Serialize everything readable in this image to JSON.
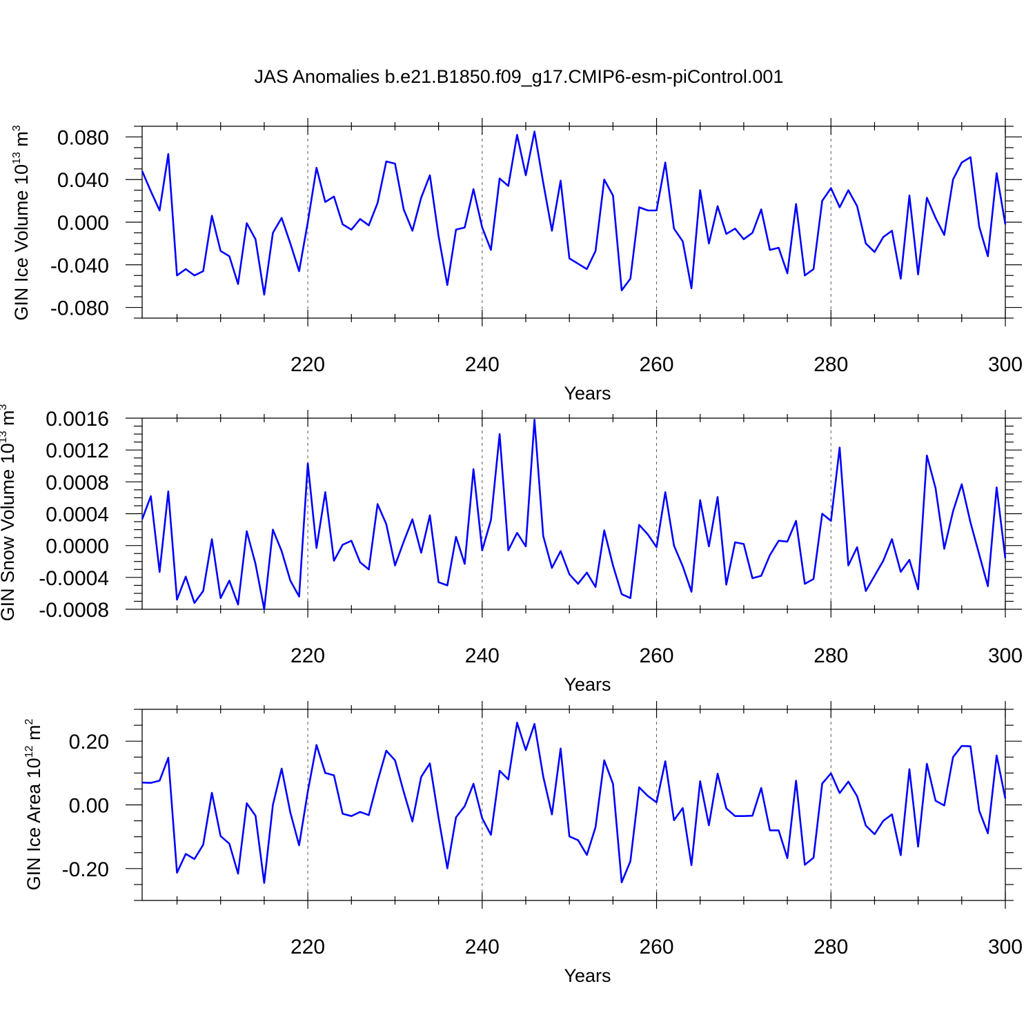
{
  "chart_data": [
    {
      "type": "line",
      "title": "JAS Anomalies b.e21.B1850.f09_g17.CMIP6-esm-piControl.001",
      "xlabel": "Years",
      "ylabel_main": "GIN Ice Volume 10",
      "ylabel_exp": "13",
      "ylabel_unit": "m",
      "ylabel_unit_exp": "3",
      "xlim": [
        201,
        300
      ],
      "ylim": [
        -0.09,
        0.09
      ],
      "xticks": [
        220,
        240,
        260,
        280,
        300
      ],
      "xtick_labels": [
        "220",
        "240",
        "260",
        "280",
        "300"
      ],
      "yticks": [
        -0.08,
        -0.04,
        0.0,
        0.04,
        0.08
      ],
      "ytick_labels": [
        "-0.080",
        "-0.040",
        "0.000",
        "0.040",
        "0.080"
      ],
      "grid_x": [
        220,
        240,
        260,
        280
      ],
      "series": [
        {
          "name": "GIN Ice Volume",
          "color": "#0000ff",
          "x_start": 201,
          "values": [
            0.048,
            0.029,
            0.011,
            0.064,
            -0.05,
            -0.044,
            -0.05,
            -0.046,
            0.006,
            -0.027,
            -0.032,
            -0.058,
            -0.001,
            -0.016,
            -0.068,
            -0.01,
            0.004,
            -0.02,
            -0.046,
            0.0,
            0.051,
            0.019,
            0.024,
            -0.002,
            -0.007,
            0.003,
            -0.003,
            0.018,
            0.057,
            0.055,
            0.012,
            -0.008,
            0.023,
            0.044,
            -0.013,
            -0.059,
            -0.007,
            -0.005,
            0.031,
            -0.005,
            -0.026,
            0.041,
            0.034,
            0.082,
            0.044,
            0.085,
            0.037,
            -0.008,
            0.039,
            -0.034,
            -0.039,
            -0.044,
            -0.027,
            0.04,
            0.025,
            -0.064,
            -0.053,
            0.014,
            0.011,
            0.011,
            0.056,
            -0.006,
            -0.018,
            -0.062,
            0.03,
            -0.02,
            0.015,
            -0.011,
            -0.006,
            -0.016,
            -0.01,
            0.012,
            -0.026,
            -0.024,
            -0.048,
            0.017,
            -0.05,
            -0.044,
            0.02,
            0.032,
            0.014,
            0.03,
            0.015,
            -0.02,
            -0.028,
            -0.014,
            -0.008,
            -0.053,
            0.025,
            -0.049,
            0.023,
            0.004,
            -0.012,
            0.04,
            0.056,
            0.061,
            -0.004,
            -0.032,
            0.046,
            -0.002
          ]
        }
      ]
    },
    {
      "type": "line",
      "xlabel": "Years",
      "ylabel_main": "GIN Snow Volume 10",
      "ylabel_exp": "13",
      "ylabel_unit": "m",
      "ylabel_unit_exp": "3",
      "xlim": [
        201,
        300
      ],
      "ylim": [
        -0.0008,
        0.0016
      ],
      "xticks": [
        220,
        240,
        260,
        280,
        300
      ],
      "xtick_labels": [
        "220",
        "240",
        "260",
        "280",
        "300"
      ],
      "yticks": [
        -0.0008,
        -0.0004,
        0.0,
        0.0004,
        0.0008,
        0.0012,
        0.0016
      ],
      "ytick_labels": [
        "-0.0008",
        "-0.0004",
        "0.0000",
        "0.0004",
        "0.0008",
        "0.0012",
        "0.0016"
      ],
      "grid_x": [
        220,
        240,
        260,
        280
      ],
      "series": [
        {
          "name": "GIN Snow Volume",
          "color": "#0000ff",
          "x_start": 201,
          "values": [
            0.00033,
            0.00062,
            -0.00033,
            0.00068,
            -0.00068,
            -0.00039,
            -0.00072,
            -0.00057,
            8e-05,
            -0.00066,
            -0.00044,
            -0.00074,
            0.00018,
            -0.00023,
            -0.0008,
            0.0002,
            -7e-05,
            -0.00044,
            -0.00064,
            0.00103,
            -3e-05,
            0.00067,
            -0.00019,
            1e-05,
            6e-05,
            -0.00021,
            -0.0003,
            0.00052,
            0.00027,
            -0.00025,
            5e-05,
            0.00033,
            -9e-05,
            0.00038,
            -0.00046,
            -0.0005,
            0.00011,
            -0.00023,
            0.00096,
            -6e-05,
            0.00032,
            0.0014,
            -6e-05,
            0.00016,
            -1e-05,
            0.00158,
            0.00012,
            -0.00028,
            -7e-05,
            -0.00036,
            -0.00048,
            -0.00034,
            -0.00052,
            0.00019,
            -0.00025,
            -0.00061,
            -0.00066,
            0.00026,
            0.00014,
            -2e-05,
            0.00067,
            0.0,
            -0.00026,
            -0.00058,
            0.00057,
            -1e-05,
            0.00061,
            -0.00049,
            4e-05,
            2e-05,
            -0.00041,
            -0.00038,
            -0.00012,
            6e-05,
            5e-05,
            0.00031,
            -0.00048,
            -0.00042,
            0.0004,
            0.00031,
            0.00123,
            -0.00025,
            -2e-05,
            -0.00057,
            -0.00038,
            -0.00019,
            8e-05,
            -0.00033,
            -0.00018,
            -0.00055,
            0.00113,
            0.00072,
            -4e-05,
            0.00043,
            0.00077,
            0.00029,
            -0.00011,
            -0.00051,
            0.00073,
            -0.00016
          ]
        }
      ]
    },
    {
      "type": "line",
      "xlabel": "Years",
      "ylabel_main": "GIN Ice Area 10",
      "ylabel_exp": "12",
      "ylabel_unit": "m",
      "ylabel_unit_exp": "2",
      "xlim": [
        201,
        300
      ],
      "ylim": [
        -0.3,
        0.3
      ],
      "xticks": [
        220,
        240,
        260,
        280,
        300
      ],
      "xtick_labels": [
        "220",
        "240",
        "260",
        "280",
        "300"
      ],
      "yticks": [
        -0.2,
        0.0,
        0.2
      ],
      "ytick_labels": [
        "-0.20",
        "0.00",
        "0.20"
      ],
      "grid_x": [
        220,
        240,
        260,
        280
      ],
      "series": [
        {
          "name": "GIN Ice Area",
          "color": "#0000ff",
          "x_start": 201,
          "values": [
            0.07,
            0.069,
            0.076,
            0.148,
            -0.213,
            -0.154,
            -0.17,
            -0.125,
            0.038,
            -0.098,
            -0.122,
            -0.216,
            0.005,
            -0.034,
            -0.245,
            0.0,
            0.114,
            -0.024,
            -0.127,
            0.042,
            0.188,
            0.1,
            0.093,
            -0.028,
            -0.035,
            -0.022,
            -0.032,
            0.074,
            0.17,
            0.14,
            0.041,
            -0.052,
            0.088,
            0.13,
            -0.041,
            -0.199,
            -0.039,
            -0.004,
            0.066,
            -0.042,
            -0.094,
            0.107,
            0.08,
            0.258,
            0.172,
            0.254,
            0.089,
            -0.03,
            0.177,
            -0.099,
            -0.111,
            -0.157,
            -0.07,
            0.14,
            0.066,
            -0.243,
            -0.177,
            0.055,
            0.028,
            0.008,
            0.137,
            -0.048,
            -0.01,
            -0.189,
            0.074,
            -0.064,
            0.098,
            -0.011,
            -0.035,
            -0.035,
            -0.034,
            0.053,
            -0.08,
            -0.08,
            -0.167,
            0.076,
            -0.188,
            -0.166,
            0.067,
            0.099,
            0.037,
            0.073,
            0.027,
            -0.065,
            -0.092,
            -0.05,
            -0.03,
            -0.158,
            0.112,
            -0.131,
            0.129,
            0.013,
            -0.002,
            0.15,
            0.185,
            0.184,
            -0.018,
            -0.089,
            0.155,
            0.02
          ]
        }
      ]
    }
  ]
}
